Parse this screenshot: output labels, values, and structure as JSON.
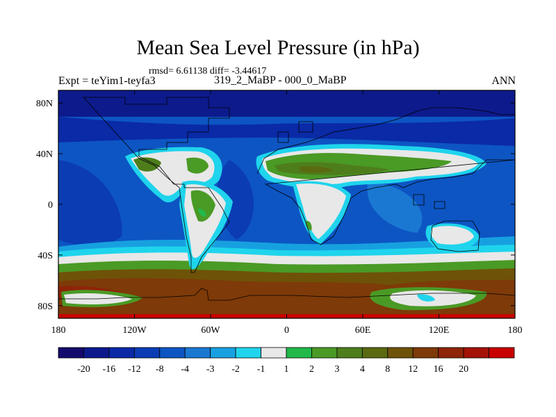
{
  "header": {
    "title": "Mean Sea Level Pressure (in hPa)",
    "stats": "rmsd= 6.61138 diff= -3.44617",
    "experiment": "Expt = teYim1-teyfa3",
    "subtitle": "319_2_MaBP - 000_0_MaBP",
    "season": "ANN"
  },
  "axes": {
    "x_ticks": [
      "180",
      "120W",
      "60W",
      "0",
      "60E",
      "120E",
      "180"
    ],
    "y_ticks": [
      "80N",
      "40N",
      "0",
      "40S",
      "80S"
    ]
  },
  "colorbar": {
    "colors": [
      "#140a6e",
      "#0d1a8c",
      "#0a2aa6",
      "#0b3cb4",
      "#0d55c3",
      "#1a78d2",
      "#17a0e0",
      "#1fd4ec",
      "#e8e8e8",
      "#22b84a",
      "#4a9a26",
      "#4e7e1c",
      "#5a6a10",
      "#6e5208",
      "#7e3a08",
      "#8e2408",
      "#a41206",
      "#c80000"
    ],
    "labels": [
      "-20",
      "-16",
      "-12",
      "-8",
      "-4",
      "-3",
      "-2",
      "-1",
      "1",
      "2",
      "3",
      "4",
      "8",
      "12",
      "16",
      "20"
    ]
  }
}
